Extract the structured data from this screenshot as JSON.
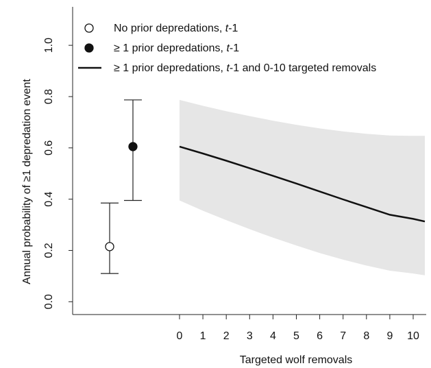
{
  "chart_data": {
    "type": "scatter",
    "xlabel": "Targeted wolf removals",
    "ylabel": "Annual probability of ≥1 depredation event",
    "xlim": [
      0,
      10.5
    ],
    "ylim": [
      -0.05,
      1.15
    ],
    "x_ticks": [
      0,
      1,
      2,
      3,
      4,
      5,
      6,
      7,
      8,
      9,
      10
    ],
    "y_ticks": [
      0.0,
      0.2,
      0.4,
      0.6,
      0.8,
      1.0
    ],
    "grid": false,
    "legend_position": "top-left",
    "point_estimates": [
      {
        "label": "No prior depredations, t-1",
        "marker": "open-circle",
        "value": 0.215,
        "ci_low": 0.11,
        "ci_high": 0.385
      },
      {
        "label": "≥ 1 prior depredations, t-1",
        "marker": "filled-circle",
        "value": 0.605,
        "ci_low": 0.395,
        "ci_high": 0.787
      }
    ],
    "series": [
      {
        "name": "≥ 1 prior depredations, t-1 and 0-10 targeted removals",
        "x": [
          0,
          1,
          2,
          3,
          4,
          5,
          6,
          7,
          8,
          9,
          10,
          10.5
        ],
        "y": [
          0.605,
          0.578,
          0.55,
          0.521,
          0.491,
          0.461,
          0.43,
          0.399,
          0.369,
          0.339,
          0.323,
          0.313
        ],
        "ci_low": [
          0.395,
          0.355,
          0.318,
          0.283,
          0.25,
          0.219,
          0.19,
          0.164,
          0.141,
          0.121,
          0.11,
          0.103
        ],
        "ci_high": [
          0.787,
          0.764,
          0.743,
          0.724,
          0.706,
          0.69,
          0.676,
          0.664,
          0.655,
          0.648,
          0.647,
          0.647
        ]
      }
    ],
    "colors": {
      "line": "#111111",
      "band": "#e6e6e6",
      "axis": "#222222"
    },
    "legend": [
      {
        "symbol": "open-circle",
        "prefix": "No prior depredations, ",
        "italic": "t",
        "suffix": "-1"
      },
      {
        "symbol": "filled-circle",
        "prefix": "≥ 1 prior depredations, ",
        "italic": "t",
        "suffix": "-1"
      },
      {
        "symbol": "line",
        "prefix": "≥ 1 prior depredations, ",
        "italic": "t",
        "suffix": "-1 and 0-10 targeted removals"
      }
    ]
  }
}
